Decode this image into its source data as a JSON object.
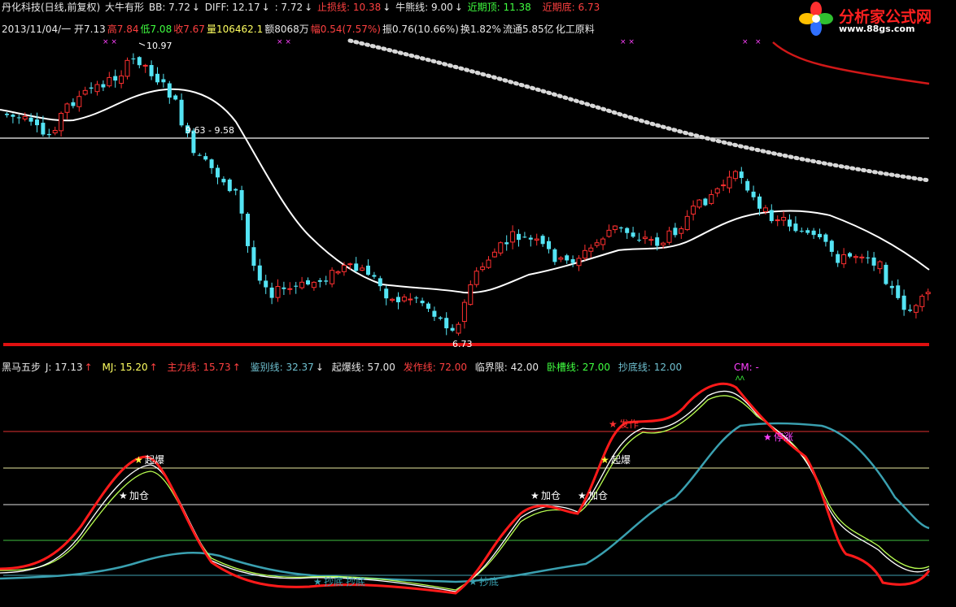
{
  "header1": {
    "name": "丹化科技(日线,前复权)",
    "formula": "大牛有形",
    "bb_label": "BB: 7.72",
    "diff_label": "DIFF: 12.17",
    "colon_label": ": 7.72",
    "stop_label": "止损线: 10.38",
    "bull_label": "牛熊线: 9.00",
    "recent_top_label": "近期顶: 11.38",
    "recent_bottom_label": "近期底: 6.73"
  },
  "header2": {
    "date_open": "2013/11/04/一 开7.13",
    "high": "高7.84",
    "low": "低7.08",
    "close": "收7.67",
    "volume": "量106462.1",
    "amount": "额8068万",
    "change": "幅0.54(7.57%)",
    "amplitude": "振0.76(10.66%)",
    "turnover": "换1.82%",
    "float_cap": "流通5.85亿",
    "industry": "化工原料"
  },
  "main_chart": {
    "high_label": "10.97",
    "range_label": "9.63 - 9.58",
    "low_label": "6.73"
  },
  "indicator_header": {
    "name": "黑马五步",
    "j": "J: 17.13",
    "mj": "MJ: 15.20",
    "main": "主力线: 15.73",
    "jian": "鉴别线: 32.37",
    "qibao": "起爆线: 57.00",
    "fazuo": "发作线: 72.00",
    "linjie": "临界限: 42.00",
    "woqiao": "卧槽线: 27.00",
    "chaodi": "抄底线: 12.00",
    "cm": "CM: -"
  },
  "signals": {
    "qibao": "起爆",
    "jiacang": "加仓",
    "fazuo": "发作",
    "chaodi": "抄底",
    "ting": "停涨"
  },
  "logo": {
    "title": "分析家公式网",
    "url": "www.88gs.com"
  },
  "colors": {
    "up": "#ff3030",
    "down": "#54e4f4",
    "ma": "#ffffff",
    "dotted": "#d0d0d0",
    "red_line": "#e01010",
    "indicator_main": "#ff2020",
    "indicator_j": "#ffffff",
    "indicator_mj": "#c8ff60",
    "indicator_jian": "#3aa0b0"
  }
}
